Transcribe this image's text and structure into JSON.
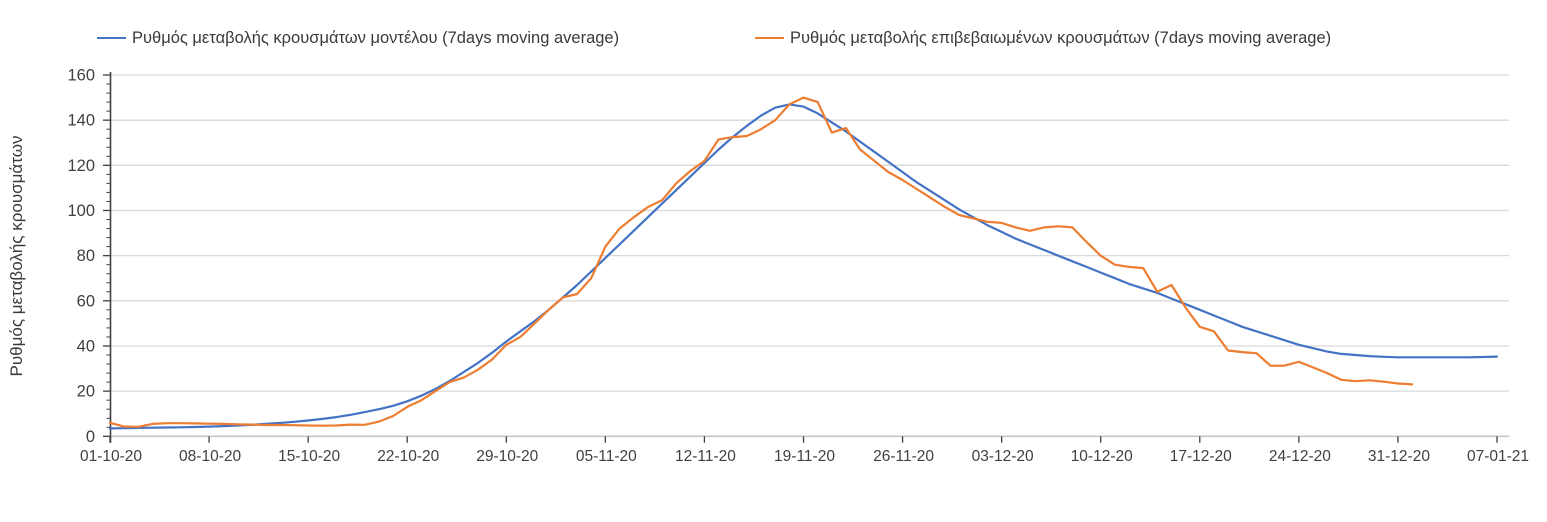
{
  "page": {
    "background": "#ffffff",
    "text_color": "#404040",
    "gridline_color": "#d9d9d9",
    "x_axis_color": "#c6c6c6",
    "y_axis_color": "#404040"
  },
  "chart_data": {
    "type": "line",
    "title": "",
    "ylabel": "Ρυθμός μεταβολής κρουσμάτων",
    "xlabel": "",
    "ylim": [
      0,
      160
    ],
    "y_ticks": [
      0,
      20,
      40,
      60,
      80,
      100,
      120,
      140,
      160
    ],
    "y_minor_tick_step": 4,
    "x_tick_labels": [
      "01-10-20",
      "08-10-20",
      "15-10-20",
      "22-10-20",
      "29-10-20",
      "05-11-20",
      "12-11-20",
      "19-11-20",
      "26-11-20",
      "03-12-20",
      "10-12-20",
      "17-12-20",
      "24-12-20",
      "31-12-20",
      "07-01-21"
    ],
    "x_tick_days": [
      0,
      7,
      14,
      21,
      28,
      35,
      42,
      49,
      56,
      63,
      70,
      77,
      84,
      91,
      98
    ],
    "x_day_span": 98,
    "grid": "horizontal-only",
    "legend_position": "top",
    "series": [
      {
        "name": "Ρυθμός μεταβολής κρουσμάτων μοντέλου (7days moving average)",
        "color": "#4472C4",
        "start_day": 0,
        "values": [
          3.5,
          3.6,
          3.7,
          3.8,
          3.9,
          4.0,
          4.1,
          4.3,
          4.5,
          4.8,
          5.1,
          5.5,
          5.9,
          6.4,
          7.0,
          7.7,
          8.5,
          9.5,
          10.7,
          12.0,
          13.5,
          15.5,
          18.0,
          21.0,
          24.5,
          28.5,
          32.5,
          37.0,
          42.0,
          46.5,
          51.0,
          56.0,
          61.5,
          67.0,
          73.0,
          79.0,
          85.0,
          91.0,
          97.0,
          103.0,
          109.0,
          115.0,
          121.0,
          127.0,
          132.5,
          137.5,
          142.0,
          145.5,
          147.0,
          146.0,
          143.0,
          139.0,
          135.0,
          130.5,
          126.0,
          121.5,
          117.0,
          112.5,
          108.5,
          104.5,
          100.5,
          97.0,
          93.5,
          90.5,
          87.5,
          85.0,
          82.5,
          80.0,
          77.5,
          75.0,
          72.5,
          70.0,
          67.5,
          65.5,
          63.5,
          61.0,
          58.5,
          56.0,
          53.5,
          51.0,
          48.5,
          46.5,
          44.5,
          42.5,
          40.5,
          39.0,
          37.5,
          36.5,
          36.0,
          35.5,
          35.2,
          35.0,
          35.0,
          35.0,
          35.0,
          35.0,
          35.0,
          35.1,
          35.3
        ]
      },
      {
        "name": "Ρυθμός μεταβολής επιβεβαιωμένων κρουσμάτων (7days moving average)",
        "color": "#ED7D31",
        "start_day": 0,
        "values": [
          6.0,
          4.3,
          4.2,
          5.5,
          5.8,
          5.8,
          5.7,
          5.6,
          5.5,
          5.3,
          5.2,
          5.0,
          5.0,
          4.9,
          4.8,
          4.7,
          4.8,
          5.2,
          5.1,
          6.5,
          9.0,
          13.0,
          16.0,
          20.0,
          24.0,
          26.0,
          29.5,
          34.0,
          40.5,
          44.0,
          50.0,
          56.0,
          61.5,
          63.0,
          70.0,
          84.0,
          92.0,
          97.0,
          101.5,
          104.5,
          112.0,
          117.5,
          122.0,
          131.5,
          132.5,
          133.0,
          136.0,
          140.0,
          147.0,
          150.0,
          148.0,
          134.5,
          136.5,
          127.0,
          122.0,
          117.0,
          113.5,
          109.5,
          105.5,
          101.5,
          98.0,
          96.5,
          95.0,
          94.5,
          92.5,
          91.0,
          92.5,
          93.0,
          92.5,
          86.0,
          80.0,
          76.0,
          75.0,
          74.5,
          64.0,
          67.0,
          57.0,
          48.5,
          46.5,
          38.0,
          37.3,
          36.8,
          31.2,
          31.3,
          33.0,
          30.5,
          28.0,
          25.0,
          24.4,
          24.8,
          24.2,
          23.4,
          23.0
        ]
      }
    ]
  }
}
